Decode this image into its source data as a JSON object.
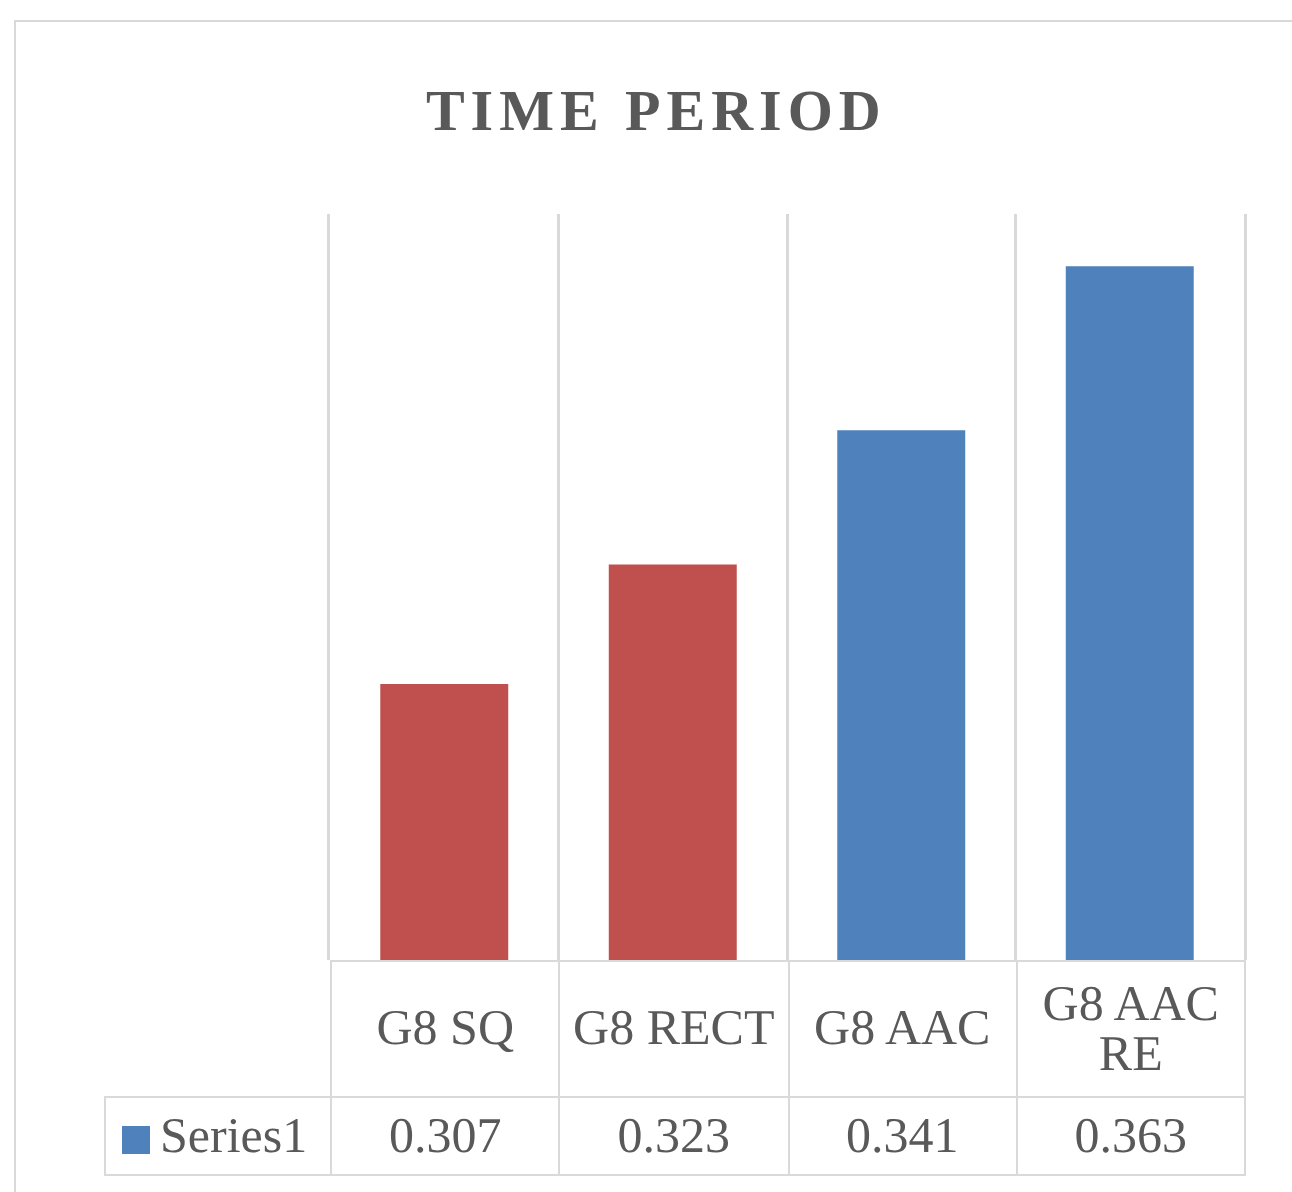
{
  "chart_data": {
    "type": "bar",
    "title": "TIME PERIOD",
    "categories": [
      "G8 SQ",
      "G8 RECT",
      "G8 AAC",
      "G8 AAC RE"
    ],
    "series": [
      {
        "name": "Series1",
        "color": "#4f81bd",
        "colors": [
          "#c0504d",
          "#c0504d",
          "#4f81bd",
          "#4f81bd"
        ],
        "values": [
          0.307,
          0.323,
          0.341,
          0.363
        ]
      }
    ],
    "ylim": [
      0.27,
      0.37
    ],
    "grid": "x",
    "legend": "bottom left",
    "tick_labels": "x",
    "data_labels": true
  }
}
